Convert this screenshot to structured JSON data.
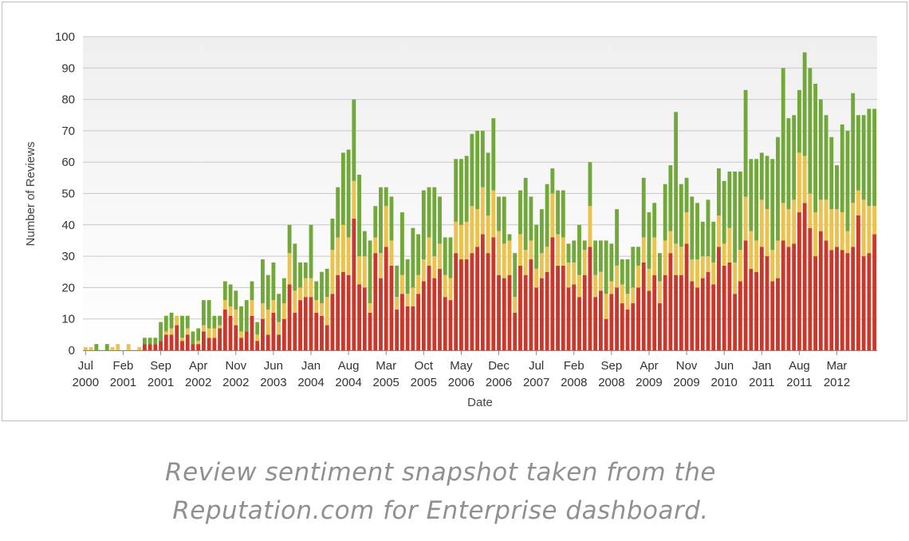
{
  "chart_data": {
    "type": "bar",
    "stacked": true,
    "xlabel": "Date",
    "ylabel": "Number of Reviews",
    "ylim": [
      0,
      100
    ],
    "yticks": [
      0,
      10,
      20,
      30,
      40,
      50,
      60,
      70,
      80,
      90,
      100
    ],
    "grid": true,
    "legend": "none",
    "x_tick_labels": [
      {
        "month": "Jul",
        "year": "2000",
        "index": 0
      },
      {
        "month": "Feb",
        "year": "2001",
        "index": 7
      },
      {
        "month": "Sep",
        "year": "2001",
        "index": 14
      },
      {
        "month": "Apr",
        "year": "2002",
        "index": 21
      },
      {
        "month": "Nov",
        "year": "2002",
        "index": 28
      },
      {
        "month": "Jun",
        "year": "2003",
        "index": 35
      },
      {
        "month": "Jan",
        "year": "2004",
        "index": 42
      },
      {
        "month": "Aug",
        "year": "2004",
        "index": 49
      },
      {
        "month": "Mar",
        "year": "2005",
        "index": 56
      },
      {
        "month": "Oct",
        "year": "2005",
        "index": 63
      },
      {
        "month": "May",
        "year": "2006",
        "index": 70
      },
      {
        "month": "Dec",
        "year": "2006",
        "index": 77
      },
      {
        "month": "Jul",
        "year": "2007",
        "index": 84
      },
      {
        "month": "Feb",
        "year": "2008",
        "index": 91
      },
      {
        "month": "Sep",
        "year": "2008",
        "index": 98
      },
      {
        "month": "Apr",
        "year": "2009",
        "index": 105
      },
      {
        "month": "Nov",
        "year": "2009",
        "index": 112
      },
      {
        "month": "Jun",
        "year": "2010",
        "index": 119
      },
      {
        "month": "Jan",
        "year": "2011",
        "index": 126
      },
      {
        "month": "Aug",
        "year": "2011",
        "index": 133
      },
      {
        "month": "Mar",
        "year": "2012",
        "index": 140
      }
    ],
    "series": [
      {
        "color": "#c9382a",
        "values": [
          0,
          0,
          0,
          0,
          0,
          0,
          0,
          0,
          0,
          0,
          0,
          2,
          2,
          2,
          3,
          5,
          5,
          8,
          3,
          5,
          2,
          2,
          6,
          4,
          4,
          7,
          13,
          11,
          8,
          4,
          6,
          11,
          3,
          10,
          5,
          12,
          5,
          10,
          21,
          12,
          16,
          17,
          17,
          12,
          11,
          8,
          18,
          24,
          25,
          24,
          42,
          21,
          20,
          12,
          31,
          23,
          33,
          27,
          13,
          18,
          14,
          14,
          18,
          22,
          27,
          23,
          26,
          17,
          16,
          31,
          29,
          29,
          31,
          33,
          37,
          31,
          36,
          24,
          23,
          24,
          12,
          27,
          24,
          29,
          20,
          23,
          25,
          36,
          27,
          27,
          20,
          21,
          17,
          24,
          33,
          17,
          19,
          10,
          18,
          20,
          15,
          13,
          15,
          20,
          28,
          19,
          24,
          15,
          24,
          31,
          24,
          24,
          34,
          22,
          20,
          23,
          25,
          21,
          33,
          27,
          28,
          18,
          22,
          35,
          26,
          25,
          33,
          30,
          22,
          23,
          35,
          33,
          34,
          44,
          47,
          39,
          30,
          38,
          35,
          32,
          33,
          32,
          31,
          33,
          43,
          30,
          31,
          37
        ]
      },
      {
        "color": "#ebc24b",
        "values": [
          1,
          1,
          0,
          0,
          0,
          1,
          2,
          0,
          2,
          0,
          1,
          0,
          0,
          0,
          0,
          1,
          2,
          3,
          1,
          2,
          0,
          1,
          2,
          3,
          3,
          1,
          3,
          3,
          5,
          2,
          0,
          5,
          2,
          5,
          8,
          4,
          4,
          5,
          10,
          7,
          4,
          6,
          6,
          4,
          4,
          9,
          14,
          12,
          15,
          12,
          12,
          9,
          10,
          3,
          5,
          8,
          13,
          8,
          4,
          6,
          4,
          6,
          6,
          7,
          9,
          7,
          8,
          7,
          7,
          10,
          11,
          12,
          15,
          12,
          15,
          12,
          15,
          14,
          11,
          11,
          5,
          10,
          8,
          6,
          6,
          8,
          8,
          14,
          10,
          9,
          8,
          7,
          7,
          8,
          13,
          7,
          6,
          8,
          4,
          7,
          6,
          5,
          5,
          7,
          8,
          7,
          12,
          7,
          11,
          7,
          10,
          9,
          10,
          7,
          9,
          7,
          5,
          7,
          10,
          7,
          11,
          10,
          10,
          14,
          12,
          10,
          15,
          15,
          10,
          12,
          12,
          12,
          14,
          19,
          15,
          11,
          14,
          10,
          13,
          13,
          12,
          12,
          7,
          14,
          8,
          18,
          15,
          9
        ]
      },
      {
        "color": "#72a83a",
        "values": [
          0,
          0,
          2,
          0,
          2,
          0,
          0,
          0,
          0,
          0,
          0,
          2,
          2,
          2,
          6,
          5,
          5,
          0,
          7,
          4,
          4,
          4,
          8,
          9,
          4,
          3,
          6,
          7,
          6,
          8,
          10,
          6,
          4,
          14,
          11,
          12,
          9,
          8,
          9,
          15,
          8,
          5,
          17,
          6,
          10,
          9,
          10,
          16,
          23,
          28,
          26,
          26,
          8,
          20,
          10,
          21,
          6,
          14,
          10,
          20,
          11,
          19,
          13,
          22,
          16,
          22,
          15,
          12,
          13,
          20,
          21,
          21,
          23,
          25,
          18,
          20,
          23,
          11,
          15,
          2,
          14,
          14,
          23,
          14,
          14,
          14,
          20,
          8,
          14,
          15,
          6,
          7,
          16,
          3,
          14,
          11,
          10,
          17,
          12,
          18,
          8,
          11,
          13,
          6,
          19,
          18,
          11,
          9,
          18,
          21,
          42,
          20,
          11,
          20,
          18,
          11,
          18,
          13,
          15,
          20,
          18,
          29,
          25,
          34,
          23,
          26,
          15,
          17,
          29,
          33,
          43,
          29,
          27,
          20,
          33,
          40,
          41,
          32,
          27,
          23,
          14,
          28,
          32,
          35,
          24,
          27,
          31,
          31
        ]
      }
    ]
  },
  "caption": {
    "line1": "Review sentiment snapshot taken from the",
    "line2": "Reputation.com for Enterprise dashboard."
  }
}
